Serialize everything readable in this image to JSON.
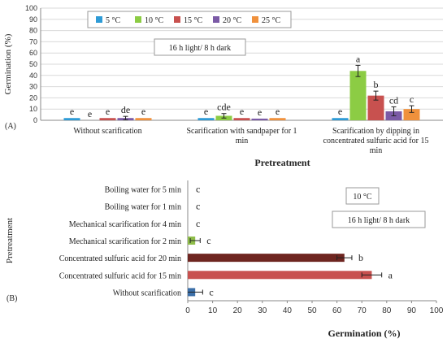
{
  "chart_data": [
    {
      "type": "bar",
      "panel_label": "(A)",
      "annotation": "16 h light/ 8 h dark",
      "xlabel": "Pretreatment",
      "ylabel": "Germination (%)",
      "ylim": [
        0,
        100
      ],
      "yticks": [
        0,
        10,
        20,
        30,
        40,
        50,
        60,
        70,
        80,
        90,
        100
      ],
      "grid": true,
      "legend_position": "top",
      "categories": [
        [
          "Without scarification"
        ],
        [
          "Scarification with sandpaper for 1",
          "min"
        ],
        [
          "Scarification by dipping in",
          "concentrated sulfuric acid for 15",
          "min"
        ]
      ],
      "series": [
        {
          "name": "5 °C",
          "color": "#2e9bd6",
          "values": [
            2,
            2,
            2
          ],
          "errors": [
            0,
            0,
            0
          ],
          "labels": [
            "e",
            "e",
            "e"
          ]
        },
        {
          "name": "10 °C",
          "color": "#8ccc44",
          "values": [
            0,
            4,
            44
          ],
          "errors": [
            0,
            2,
            5
          ],
          "labels": [
            "e",
            "cde",
            "a"
          ]
        },
        {
          "name": "15 °C",
          "color": "#c8514f",
          "values": [
            2,
            2,
            22
          ],
          "errors": [
            0,
            0,
            4
          ],
          "labels": [
            "e",
            "e",
            "b"
          ]
        },
        {
          "name": "20 °C",
          "color": "#7b5aa6",
          "values": [
            2,
            1.5,
            8
          ],
          "errors": [
            1.5,
            0,
            4
          ],
          "labels": [
            "de",
            "e",
            "cd"
          ]
        },
        {
          "name": "25 °C",
          "color": "#f0913c",
          "values": [
            2,
            2,
            10
          ],
          "errors": [
            0,
            0,
            3
          ],
          "labels": [
            "e",
            "e",
            "c"
          ]
        }
      ]
    },
    {
      "type": "bar",
      "orientation": "horizontal",
      "panel_label": "(B)",
      "annotations": [
        "10 °C",
        "16 h light/ 8 h dark"
      ],
      "xlabel": "Germination (%)",
      "ylabel": "Pretreatment",
      "xlim": [
        0,
        100
      ],
      "xticks": [
        0,
        10,
        20,
        30,
        40,
        50,
        60,
        70,
        80,
        90,
        100
      ],
      "categories": [
        "Boiling water for 5 min",
        "Boiling water for 1 min",
        "Mechanical scarification for 4 min",
        "Mechanical scarification for 2 min",
        "Concentrated sulfuric acid for 20 min",
        "Concentrated sulfuric acid for 15 min",
        "Without scarification"
      ],
      "values": [
        0,
        0,
        0,
        3,
        63,
        74,
        3
      ],
      "errors": [
        0,
        0,
        0,
        2,
        3,
        4,
        3
      ],
      "labels": [
        "c",
        "c",
        "c",
        "c",
        "b",
        "a",
        "c"
      ],
      "colors": [
        "#7aa23a",
        "#7aa23a",
        "#7aa23a",
        "#8fbd4a",
        "#6e2520",
        "#c8514f",
        "#3c6fa8"
      ]
    }
  ]
}
